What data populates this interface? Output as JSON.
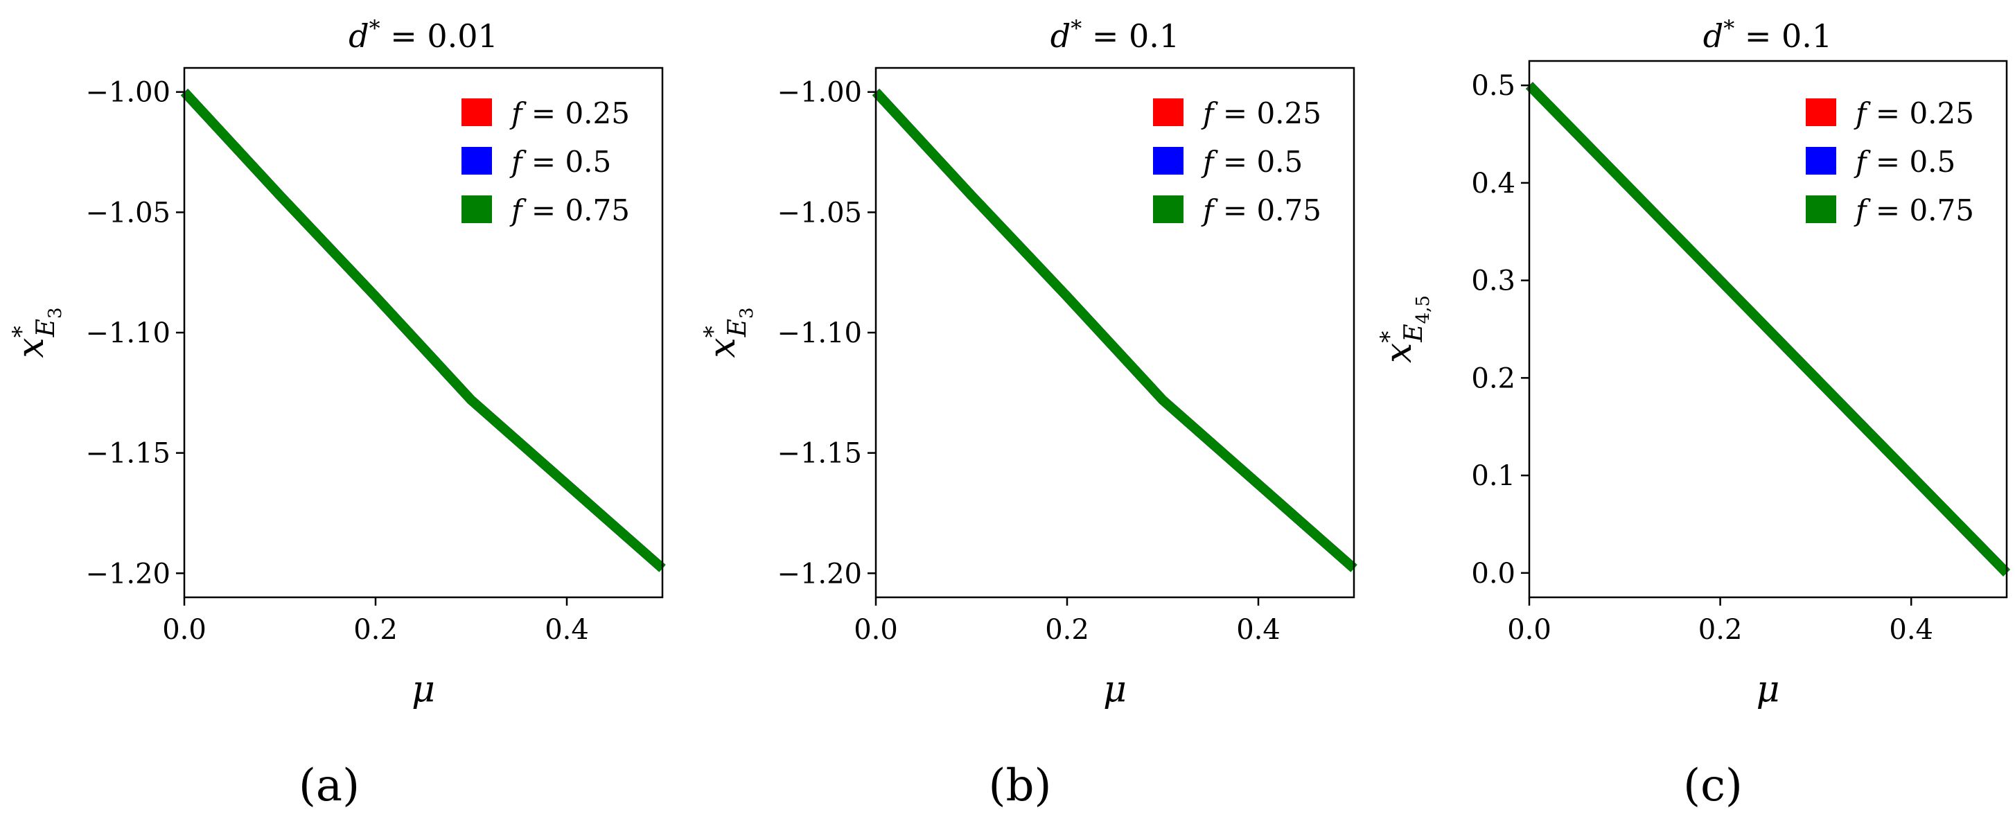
{
  "colors": {
    "red": "#ff0000",
    "blue": "#0000ff",
    "green": "#008000"
  },
  "chart_data": [
    {
      "type": "line",
      "panel_label": "(a)",
      "title": {
        "var": "d",
        "sup": "*",
        "rest": " = 0.01"
      },
      "xlabel": "μ",
      "ylabel": {
        "base": "x",
        "sup": "*",
        "sub": "E",
        "subsub": "3"
      },
      "xlim": [
        0.0,
        0.5
      ],
      "ylim": [
        -1.21,
        -0.99
      ],
      "xticks": [
        0.0,
        0.2,
        0.4
      ],
      "xtick_labels": [
        "0.0",
        "0.2",
        "0.4"
      ],
      "yticks": [
        -1.0,
        -1.05,
        -1.1,
        -1.15,
        -1.2
      ],
      "ytick_labels": [
        "−1.00",
        "−1.05",
        "−1.10",
        "−1.15",
        "−1.20"
      ],
      "legend_position": "top-right",
      "grid": false,
      "series": [
        {
          "name": "f = 0.25",
          "label_var": "f",
          "label_rest": " = 0.25",
          "color": "#ff0000",
          "x": [
            0.0,
            0.1,
            0.2,
            0.3,
            0.4,
            0.5
          ],
          "y": [
            -1.0,
            -1.043,
            -1.085,
            -1.128,
            -1.163,
            -1.198
          ]
        },
        {
          "name": "f = 0.5",
          "label_var": "f",
          "label_rest": " = 0.5",
          "color": "#0000ff",
          "x": [
            0.0,
            0.1,
            0.2,
            0.3,
            0.4,
            0.5
          ],
          "y": [
            -1.0,
            -1.043,
            -1.085,
            -1.128,
            -1.163,
            -1.198
          ]
        },
        {
          "name": "f = 0.75",
          "label_var": "f",
          "label_rest": " = 0.75",
          "color": "#008000",
          "x": [
            0.0,
            0.1,
            0.2,
            0.3,
            0.4,
            0.5
          ],
          "y": [
            -1.0,
            -1.043,
            -1.085,
            -1.128,
            -1.163,
            -1.198
          ]
        }
      ]
    },
    {
      "type": "line",
      "panel_label": "(b)",
      "title": {
        "var": "d",
        "sup": "*",
        "rest": " = 0.1"
      },
      "xlabel": "μ",
      "ylabel": {
        "base": "x",
        "sup": "*",
        "sub": "E",
        "subsub": "3"
      },
      "xlim": [
        0.0,
        0.5
      ],
      "ylim": [
        -1.21,
        -0.99
      ],
      "xticks": [
        0.0,
        0.2,
        0.4
      ],
      "xtick_labels": [
        "0.0",
        "0.2",
        "0.4"
      ],
      "yticks": [
        -1.0,
        -1.05,
        -1.1,
        -1.15,
        -1.2
      ],
      "ytick_labels": [
        "−1.00",
        "−1.05",
        "−1.10",
        "−1.15",
        "−1.20"
      ],
      "legend_position": "top-right",
      "grid": false,
      "series": [
        {
          "name": "f = 0.25",
          "label_var": "f",
          "label_rest": " = 0.25",
          "color": "#ff0000",
          "x": [
            0.0,
            0.1,
            0.2,
            0.3,
            0.4,
            0.5
          ],
          "y": [
            -1.0,
            -1.043,
            -1.085,
            -1.128,
            -1.163,
            -1.198
          ]
        },
        {
          "name": "f = 0.5",
          "label_var": "f",
          "label_rest": " = 0.5",
          "color": "#0000ff",
          "x": [
            0.0,
            0.1,
            0.2,
            0.3,
            0.4,
            0.5
          ],
          "y": [
            -1.0,
            -1.043,
            -1.085,
            -1.128,
            -1.163,
            -1.198
          ]
        },
        {
          "name": "f = 0.75",
          "label_var": "f",
          "label_rest": " = 0.75",
          "color": "#008000",
          "x": [
            0.0,
            0.1,
            0.2,
            0.3,
            0.4,
            0.5
          ],
          "y": [
            -1.0,
            -1.043,
            -1.085,
            -1.128,
            -1.163,
            -1.198
          ]
        }
      ]
    },
    {
      "type": "line",
      "panel_label": "(c)",
      "title": {
        "var": "d",
        "sup": "*",
        "rest": " = 0.1"
      },
      "xlabel": "μ",
      "ylabel": {
        "base": "x",
        "sup": "*",
        "sub": "E",
        "subsub": "4,5"
      },
      "xlim": [
        0.0,
        0.5
      ],
      "ylim": [
        -0.025,
        0.525
      ],
      "xticks": [
        0.0,
        0.2,
        0.4
      ],
      "xtick_labels": [
        "0.0",
        "0.2",
        "0.4"
      ],
      "yticks": [
        0.0,
        0.1,
        0.2,
        0.3,
        0.4,
        0.5
      ],
      "ytick_labels": [
        "0.0",
        "0.1",
        "0.2",
        "0.3",
        "0.4",
        "0.5"
      ],
      "legend_position": "top-right",
      "grid": false,
      "series": [
        {
          "name": "f = 0.25",
          "label_var": "f",
          "label_rest": " = 0.25",
          "color": "#ff0000",
          "x": [
            0.0,
            0.5
          ],
          "y": [
            0.5,
            0.0
          ]
        },
        {
          "name": "f = 0.5",
          "label_var": "f",
          "label_rest": " = 0.5",
          "color": "#0000ff",
          "x": [
            0.0,
            0.5
          ],
          "y": [
            0.5,
            0.0
          ]
        },
        {
          "name": "f = 0.75",
          "label_var": "f",
          "label_rest": " = 0.75",
          "color": "#008000",
          "x": [
            0.0,
            0.5
          ],
          "y": [
            0.5,
            0.0
          ]
        }
      ]
    }
  ]
}
